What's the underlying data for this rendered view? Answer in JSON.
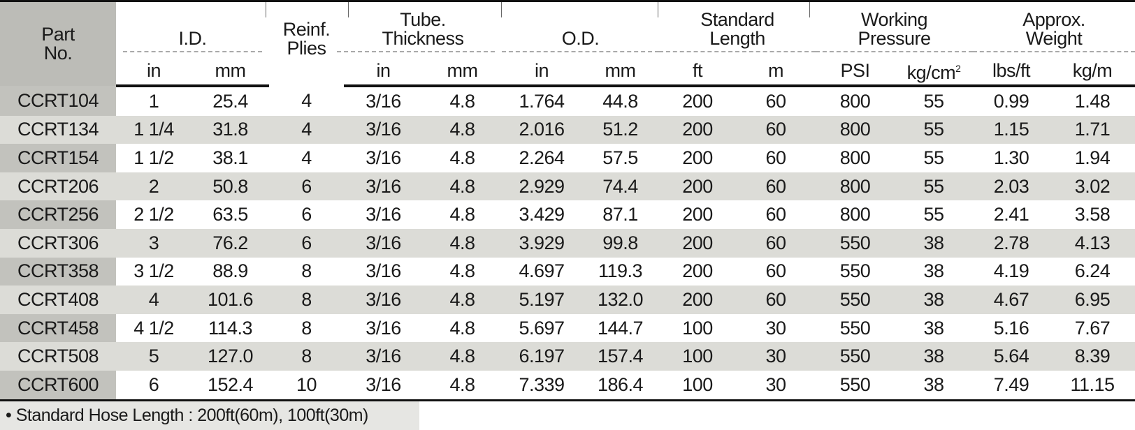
{
  "headers": {
    "part": "Part No.",
    "id": "I.D.",
    "reinf": "Reinf. Plies",
    "tube": "Tube. Thickness",
    "od": "O.D.",
    "length": "Standard Length",
    "pressure": "Working Pressure",
    "weight": "Approx. Weight"
  },
  "units": [
    "in",
    "mm",
    "in",
    "mm",
    "in",
    "mm",
    "ft",
    "m",
    "PSI",
    "kg/cm",
    "lbs/ft",
    "kg/m"
  ],
  "unit_superscript": "2",
  "rows": [
    [
      "CCRT104",
      "1",
      "25.4",
      "4",
      "3/16",
      "4.8",
      "1.764",
      "44.8",
      "200",
      "60",
      "800",
      "55",
      "0.99",
      "1.48"
    ],
    [
      "CCRT134",
      "1 1/4",
      "31.8",
      "4",
      "3/16",
      "4.8",
      "2.016",
      "51.2",
      "200",
      "60",
      "800",
      "55",
      "1.15",
      "1.71"
    ],
    [
      "CCRT154",
      "1 1/2",
      "38.1",
      "4",
      "3/16",
      "4.8",
      "2.264",
      "57.5",
      "200",
      "60",
      "800",
      "55",
      "1.30",
      "1.94"
    ],
    [
      "CCRT206",
      "2",
      "50.8",
      "6",
      "3/16",
      "4.8",
      "2.929",
      "74.4",
      "200",
      "60",
      "800",
      "55",
      "2.03",
      "3.02"
    ],
    [
      "CCRT256",
      "2 1/2",
      "63.5",
      "6",
      "3/16",
      "4.8",
      "3.429",
      "87.1",
      "200",
      "60",
      "800",
      "55",
      "2.41",
      "3.58"
    ],
    [
      "CCRT306",
      "3",
      "76.2",
      "6",
      "3/16",
      "4.8",
      "3.929",
      "99.8",
      "200",
      "60",
      "550",
      "38",
      "2.78",
      "4.13"
    ],
    [
      "CCRT358",
      "3 1/2",
      "88.9",
      "8",
      "3/16",
      "4.8",
      "4.697",
      "119.3",
      "200",
      "60",
      "550",
      "38",
      "4.19",
      "6.24"
    ],
    [
      "CCRT408",
      "4",
      "101.6",
      "8",
      "3/16",
      "4.8",
      "5.197",
      "132.0",
      "200",
      "60",
      "550",
      "38",
      "4.67",
      "6.95"
    ],
    [
      "CCRT458",
      "4 1/2",
      "114.3",
      "8",
      "3/16",
      "4.8",
      "5.697",
      "144.7",
      "100",
      "30",
      "550",
      "38",
      "5.16",
      "7.67"
    ],
    [
      "CCRT508",
      "5",
      "127.0",
      "8",
      "3/16",
      "4.8",
      "6.197",
      "157.4",
      "100",
      "30",
      "550",
      "38",
      "5.64",
      "8.39"
    ],
    [
      "CCRT600",
      "6",
      "152.4",
      "10",
      "3/16",
      "4.8",
      "7.339",
      "186.4",
      "100",
      "30",
      "550",
      "38",
      "7.49",
      "11.15"
    ]
  ],
  "footnote": "• Standard Hose Length : 200ft(60m), 100ft(30m)"
}
